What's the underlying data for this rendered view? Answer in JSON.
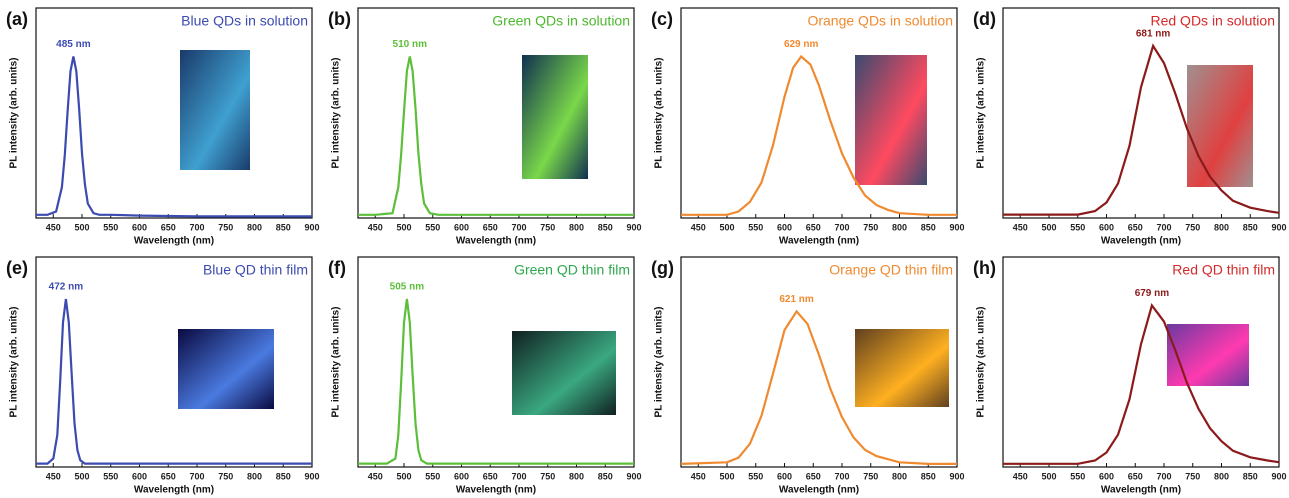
{
  "chart_data": [
    {
      "type": "line",
      "panel": "(a)",
      "title": "Blue QDs in solution",
      "title_color": "#3b4bb0",
      "peak_label": "485 nm",
      "color": "#3b4bb0",
      "x_label": "Wavelength (nm)",
      "y_label": "PL intensity (arb. units)",
      "x": [
        420,
        440,
        455,
        465,
        470,
        475,
        480,
        485,
        490,
        495,
        500,
        505,
        510,
        520,
        530,
        550,
        600,
        700,
        800,
        900
      ],
      "values": [
        0.02,
        0.02,
        0.04,
        0.19,
        0.39,
        0.66,
        0.91,
        1.0,
        0.91,
        0.68,
        0.4,
        0.21,
        0.09,
        0.03,
        0.02,
        0.02,
        0.015,
        0.01,
        0.01,
        0.01
      ],
      "xlim": [
        420,
        900
      ],
      "ylim": [
        0,
        1.3
      ],
      "xticks": [
        450,
        500,
        550,
        600,
        650,
        700,
        750,
        800,
        850,
        900
      ]
    },
    {
      "type": "line",
      "panel": "(b)",
      "title": "Green QDs in solution",
      "title_color": "#4cb82e",
      "peak_label": "510 nm",
      "color": "#5cbf3a",
      "x_label": "Wavelength (nm)",
      "y_label": "PL intensity (arb. units)",
      "x": [
        420,
        450,
        480,
        490,
        495,
        500,
        505,
        510,
        515,
        520,
        525,
        530,
        535,
        545,
        560,
        600,
        700,
        800,
        900
      ],
      "values": [
        0.02,
        0.02,
        0.03,
        0.19,
        0.39,
        0.66,
        0.91,
        1.0,
        0.91,
        0.68,
        0.4,
        0.21,
        0.09,
        0.03,
        0.02,
        0.02,
        0.02,
        0.02,
        0.02
      ],
      "xlim": [
        420,
        900
      ],
      "ylim": [
        0,
        1.3
      ],
      "xticks": [
        450,
        500,
        550,
        600,
        650,
        700,
        750,
        800,
        850,
        900
      ]
    },
    {
      "type": "line",
      "panel": "(c)",
      "title": "Orange QDs in solution",
      "title_color": "#f08a30",
      "peak_label": "629 nm",
      "color": "#f08a30",
      "x_label": "Wavelength (nm)",
      "y_label": "PL intensity (arb. units)",
      "x": [
        420,
        500,
        520,
        540,
        560,
        580,
        600,
        615,
        629,
        645,
        660,
        680,
        700,
        720,
        740,
        760,
        780,
        800,
        850,
        900
      ],
      "values": [
        0.02,
        0.02,
        0.04,
        0.1,
        0.22,
        0.45,
        0.75,
        0.93,
        1.0,
        0.95,
        0.82,
        0.6,
        0.4,
        0.25,
        0.14,
        0.08,
        0.05,
        0.03,
        0.02,
        0.02
      ],
      "xlim": [
        420,
        900
      ],
      "ylim": [
        0,
        1.3
      ],
      "xticks": [
        450,
        500,
        550,
        600,
        650,
        700,
        750,
        800,
        850,
        900
      ]
    },
    {
      "type": "line",
      "panel": "(d)",
      "title": "Red QDs in solution",
      "title_color": "#d42a2a",
      "peak_label": "681 nm",
      "color": "#8b1a1a",
      "x_label": "Wavelength (nm)",
      "y_label": "PL intensity (arb. units)",
      "x": [
        420,
        550,
        580,
        600,
        620,
        640,
        660,
        681,
        700,
        720,
        740,
        760,
        780,
        800,
        820,
        850,
        880,
        900
      ],
      "values": [
        0.02,
        0.02,
        0.04,
        0.09,
        0.2,
        0.42,
        0.76,
        1.0,
        0.9,
        0.72,
        0.52,
        0.36,
        0.24,
        0.16,
        0.1,
        0.06,
        0.04,
        0.03
      ],
      "xlim": [
        420,
        900
      ],
      "ylim": [
        0,
        1.22
      ],
      "xticks": [
        450,
        500,
        550,
        600,
        650,
        700,
        750,
        800,
        850,
        900
      ]
    },
    {
      "type": "line",
      "panel": "(e)",
      "title": "Blue QD thin film",
      "title_color": "#3b4bb0",
      "peak_label": "472 nm",
      "color": "#3b4bb0",
      "x_label": "Wavelength (nm)",
      "y_label": "PL intensity (arb. units)",
      "x": [
        420,
        440,
        450,
        457,
        462,
        467,
        472,
        477,
        482,
        487,
        492,
        497,
        505,
        520,
        600,
        700,
        800,
        900
      ],
      "values": [
        0.02,
        0.02,
        0.05,
        0.19,
        0.5,
        0.86,
        1.0,
        0.86,
        0.55,
        0.26,
        0.1,
        0.04,
        0.02,
        0.02,
        0.02,
        0.02,
        0.02,
        0.02
      ],
      "xlim": [
        420,
        900
      ],
      "ylim": [
        0,
        1.25
      ],
      "xticks": [
        450,
        500,
        550,
        600,
        650,
        700,
        750,
        800,
        850,
        900
      ]
    },
    {
      "type": "line",
      "panel": "(f)",
      "title": "Green QD thin film",
      "title_color": "#2ea84e",
      "peak_label": "505 nm",
      "color": "#5cbf3a",
      "x_label": "Wavelength (nm)",
      "y_label": "PL intensity (arb. units)",
      "x": [
        420,
        470,
        485,
        490,
        495,
        500,
        505,
        510,
        515,
        520,
        525,
        530,
        540,
        560,
        600,
        700,
        800,
        900
      ],
      "values": [
        0.02,
        0.02,
        0.05,
        0.19,
        0.5,
        0.86,
        1.0,
        0.86,
        0.55,
        0.26,
        0.1,
        0.04,
        0.02,
        0.02,
        0.02,
        0.02,
        0.02,
        0.02
      ],
      "xlim": [
        420,
        900
      ],
      "ylim": [
        0,
        1.25
      ],
      "xticks": [
        450,
        500,
        550,
        600,
        650,
        700,
        750,
        800,
        850,
        900
      ]
    },
    {
      "type": "line",
      "panel": "(g)",
      "title": "Orange QD thin film",
      "title_color": "#f08a30",
      "peak_label": "621 nm",
      "color": "#f08a30",
      "x_label": "Wavelength (nm)",
      "y_label": "PL intensity (arb. units)",
      "x": [
        420,
        500,
        520,
        540,
        560,
        580,
        600,
        621,
        640,
        660,
        680,
        700,
        720,
        740,
        760,
        800,
        850,
        900
      ],
      "values": [
        0.02,
        0.03,
        0.06,
        0.15,
        0.33,
        0.6,
        0.88,
        1.0,
        0.92,
        0.72,
        0.5,
        0.32,
        0.19,
        0.11,
        0.07,
        0.03,
        0.02,
        0.02
      ],
      "xlim": [
        420,
        900
      ],
      "ylim": [
        0,
        1.35
      ],
      "xticks": [
        450,
        500,
        550,
        600,
        650,
        700,
        750,
        800,
        850,
        900
      ]
    },
    {
      "type": "line",
      "panel": "(h)",
      "title": "Red QD thin film",
      "title_color": "#d42a2a",
      "peak_label": "679 nm",
      "color": "#8b1a1a",
      "x_label": "Wavelength (nm)",
      "y_label": "PL intensity (arb. units)",
      "x": [
        420,
        550,
        580,
        600,
        620,
        640,
        660,
        679,
        700,
        720,
        740,
        760,
        780,
        800,
        820,
        850,
        880,
        900
      ],
      "values": [
        0.02,
        0.02,
        0.04,
        0.09,
        0.2,
        0.42,
        0.76,
        1.0,
        0.9,
        0.72,
        0.52,
        0.36,
        0.24,
        0.16,
        0.1,
        0.06,
        0.04,
        0.03
      ],
      "xlim": [
        420,
        900
      ],
      "ylim": [
        0,
        1.3
      ],
      "xticks": [
        450,
        500,
        550,
        600,
        650,
        700,
        750,
        800,
        850,
        900
      ]
    }
  ]
}
